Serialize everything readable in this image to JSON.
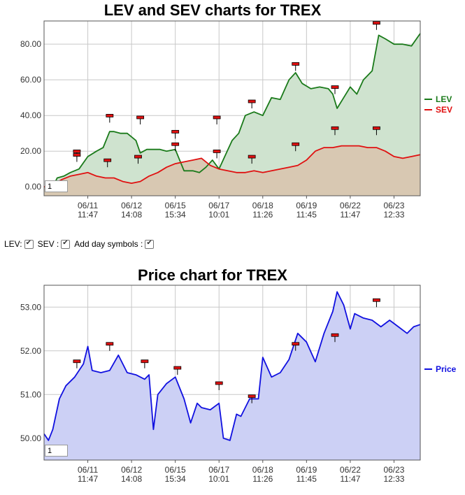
{
  "controls": {
    "lev_label": "LEV:",
    "sev_label": "SEV :",
    "day_symbols_label": "Add day symbols :",
    "lev_checked": true,
    "sev_checked": true,
    "day_symbols_checked": true
  },
  "chart_data": [
    {
      "type": "area",
      "title": "LEV and SEV charts for TREX",
      "ylim": [
        -5,
        93
      ],
      "y_ticks": [
        "0.00",
        "20.00",
        "40.00",
        "60.00",
        "80.00"
      ],
      "y_tick_values": [
        0,
        20,
        40,
        60,
        80
      ],
      "x_ticks": [
        {
          "date": "06/11",
          "time": "11:47",
          "x": 1
        },
        {
          "date": "06/12",
          "time": "14:08",
          "x": 2
        },
        {
          "date": "06/15",
          "time": "15:34",
          "x": 3
        },
        {
          "date": "06/17",
          "time": "10:01",
          "x": 4
        },
        {
          "date": "06/18",
          "time": "11:26",
          "x": 5
        },
        {
          "date": "06/19",
          "time": "11:45",
          "x": 6
        },
        {
          "date": "06/22",
          "time": "11:47",
          "x": 7
        },
        {
          "date": "06/23",
          "time": "12:33",
          "x": 8
        }
      ],
      "xlim": [
        0,
        8.6
      ],
      "grid": true,
      "legend": "right",
      "zoom_value": "1",
      "series": [
        {
          "name": "LEV",
          "color": "#1a7a1a",
          "fill": "#cfe3cf",
          "x": [
            0,
            0.2,
            0.3,
            0.45,
            0.6,
            0.8,
            1.0,
            1.2,
            1.35,
            1.5,
            1.6,
            1.75,
            1.9,
            2.1,
            2.2,
            2.35,
            2.5,
            2.65,
            2.8,
            3.0,
            3.2,
            3.4,
            3.55,
            3.7,
            3.85,
            4.0,
            4.15,
            4.3,
            4.45,
            4.6,
            4.8,
            5.0,
            5.2,
            5.4,
            5.6,
            5.75,
            5.9,
            6.1,
            6.3,
            6.5,
            6.6,
            6.7,
            6.85,
            7.0,
            7.15,
            7.3,
            7.5,
            7.65,
            7.8,
            8.0,
            8.2,
            8.4,
            8.6
          ],
          "values": [
            0,
            0,
            5,
            6,
            8,
            10,
            17,
            20,
            22,
            31,
            31,
            30,
            30,
            26,
            19,
            21,
            21,
            21,
            20,
            21,
            9,
            9,
            8,
            11,
            15,
            10,
            18,
            26,
            30,
            40,
            42,
            40,
            50,
            49,
            60,
            64,
            58,
            55,
            56,
            55,
            52,
            44,
            50,
            56,
            52,
            60,
            65,
            85,
            83,
            80,
            80,
            79,
            86
          ]
        },
        {
          "name": "SEV",
          "color": "#e01010",
          "fill": "#d8c6b0",
          "x": [
            0,
            0.2,
            0.4,
            0.6,
            0.8,
            1.0,
            1.2,
            1.4,
            1.6,
            1.8,
            2.0,
            2.2,
            2.4,
            2.6,
            2.8,
            3.0,
            3.2,
            3.4,
            3.6,
            3.8,
            4.0,
            4.2,
            4.4,
            4.6,
            4.8,
            5.0,
            5.2,
            5.4,
            5.6,
            5.8,
            6.0,
            6.2,
            6.4,
            6.6,
            6.8,
            7.0,
            7.2,
            7.4,
            7.6,
            7.8,
            8.0,
            8.2,
            8.4,
            8.6
          ],
          "values": [
            0,
            1,
            4,
            6,
            7,
            8,
            6,
            5,
            5,
            3,
            2,
            3,
            6,
            8,
            11,
            13,
            14,
            15,
            16,
            12,
            10,
            9,
            8,
            8,
            9,
            8,
            9,
            10,
            11,
            12,
            15,
            20,
            22,
            22,
            23,
            23,
            23,
            22,
            22,
            20,
            17,
            16,
            17,
            18
          ]
        }
      ],
      "day_markers": [
        {
          "x": 0.75,
          "y": 16
        },
        {
          "x": 0.75,
          "y": 14
        },
        {
          "x": 1.45,
          "y": 11
        },
        {
          "x": 1.5,
          "y": 36
        },
        {
          "x": 2.15,
          "y": 13
        },
        {
          "x": 2.2,
          "y": 35
        },
        {
          "x": 3.0,
          "y": 20
        },
        {
          "x": 3.0,
          "y": 27
        },
        {
          "x": 3.95,
          "y": 16
        },
        {
          "x": 3.95,
          "y": 35
        },
        {
          "x": 4.75,
          "y": 13
        },
        {
          "x": 4.75,
          "y": 44
        },
        {
          "x": 5.75,
          "y": 20
        },
        {
          "x": 5.75,
          "y": 65
        },
        {
          "x": 6.65,
          "y": 29
        },
        {
          "x": 6.65,
          "y": 52
        },
        {
          "x": 7.6,
          "y": 29
        },
        {
          "x": 7.6,
          "y": 88
        }
      ]
    },
    {
      "type": "area",
      "title": "Price chart for TREX",
      "ylim": [
        49.5,
        53.5
      ],
      "y_ticks": [
        "50.00",
        "51.00",
        "52.00",
        "53.00"
      ],
      "y_tick_values": [
        50,
        51,
        52,
        53
      ],
      "x_ticks": [
        {
          "date": "06/11",
          "time": "11:47",
          "x": 1
        },
        {
          "date": "06/12",
          "time": "14:08",
          "x": 2
        },
        {
          "date": "06/15",
          "time": "15:34",
          "x": 3
        },
        {
          "date": "06/17",
          "time": "10:01",
          "x": 4
        },
        {
          "date": "06/18",
          "time": "11:26",
          "x": 5
        },
        {
          "date": "06/19",
          "time": "11:45",
          "x": 6
        },
        {
          "date": "06/22",
          "time": "11:47",
          "x": 7
        },
        {
          "date": "06/23",
          "time": "12:33",
          "x": 8
        }
      ],
      "xlim": [
        0,
        8.6
      ],
      "grid": true,
      "legend": "right",
      "zoom_value": "1",
      "series": [
        {
          "name": "Price",
          "color": "#1010e0",
          "fill": "#ccd0f5",
          "x": [
            0,
            0.1,
            0.2,
            0.35,
            0.5,
            0.7,
            0.9,
            1.0,
            1.1,
            1.3,
            1.5,
            1.7,
            1.9,
            2.1,
            2.3,
            2.4,
            2.5,
            2.6,
            2.8,
            3.0,
            3.2,
            3.35,
            3.5,
            3.6,
            3.8,
            4.0,
            4.1,
            4.25,
            4.4,
            4.5,
            4.7,
            4.9,
            5.0,
            5.2,
            5.4,
            5.6,
            5.8,
            6.0,
            6.2,
            6.4,
            6.6,
            6.7,
            6.85,
            7.0,
            7.1,
            7.3,
            7.5,
            7.7,
            7.9,
            8.1,
            8.3,
            8.45,
            8.6
          ],
          "values": [
            50.1,
            49.95,
            50.2,
            50.9,
            51.2,
            51.4,
            51.7,
            52.1,
            51.55,
            51.5,
            51.55,
            51.9,
            51.5,
            51.45,
            51.35,
            51.45,
            50.2,
            51.0,
            51.25,
            51.4,
            50.9,
            50.35,
            50.8,
            50.7,
            50.65,
            50.8,
            50.0,
            49.95,
            50.55,
            50.5,
            50.9,
            50.9,
            51.85,
            51.4,
            51.5,
            51.8,
            52.4,
            52.2,
            51.75,
            52.4,
            52.9,
            53.35,
            53.05,
            52.5,
            52.85,
            52.75,
            52.7,
            52.55,
            52.7,
            52.55,
            52.4,
            52.55,
            52.6
          ]
        }
      ],
      "day_markers": [
        {
          "x": 0.75,
          "y": 51.6
        },
        {
          "x": 1.5,
          "y": 52.0
        },
        {
          "x": 2.3,
          "y": 51.6
        },
        {
          "x": 3.05,
          "y": 51.45
        },
        {
          "x": 4.0,
          "y": 51.1
        },
        {
          "x": 4.75,
          "y": 50.8
        },
        {
          "x": 5.75,
          "y": 52.0
        },
        {
          "x": 6.65,
          "y": 52.2
        },
        {
          "x": 7.6,
          "y": 53.0
        }
      ]
    }
  ]
}
